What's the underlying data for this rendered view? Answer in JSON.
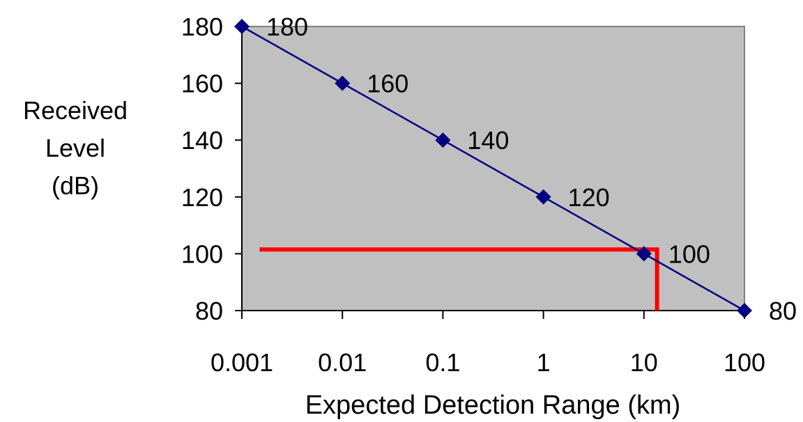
{
  "chart_data": {
    "type": "line",
    "title": "",
    "xlabel": "Expected Detection Range (km)",
    "ylabel_lines": [
      "Received",
      "Level",
      "(dB)"
    ],
    "x_scale": "log",
    "x_ticks": [
      0.001,
      0.01,
      0.1,
      1,
      10,
      100
    ],
    "x_tick_labels": [
      "0.001",
      "0.01",
      "0.1",
      "1",
      "10",
      "100"
    ],
    "y_ticks": [
      80,
      100,
      120,
      140,
      160,
      180
    ],
    "y_tick_labels": [
      "80",
      "100",
      "120",
      "140",
      "160",
      "180"
    ],
    "xlim": [
      0.001,
      100
    ],
    "ylim": [
      80,
      180
    ],
    "grid": false,
    "legend": "none",
    "plot_background": "#c0c0c0",
    "series": [
      {
        "color": "#000080",
        "marker": "diamond",
        "x": [
          0.001,
          0.01,
          0.1,
          1,
          10,
          100
        ],
        "y": [
          180,
          160,
          140,
          120,
          100,
          80
        ],
        "data_labels": [
          "180",
          "160",
          "140",
          "120",
          "100",
          "80"
        ]
      }
    ],
    "annotation_lines": [
      {
        "color": "#ff0000",
        "points": [
          {
            "x": 0.0015,
            "y": 101.5
          },
          {
            "x": 13.5,
            "y": 101.5
          },
          {
            "x": 13.5,
            "y": 80
          }
        ]
      }
    ]
  }
}
